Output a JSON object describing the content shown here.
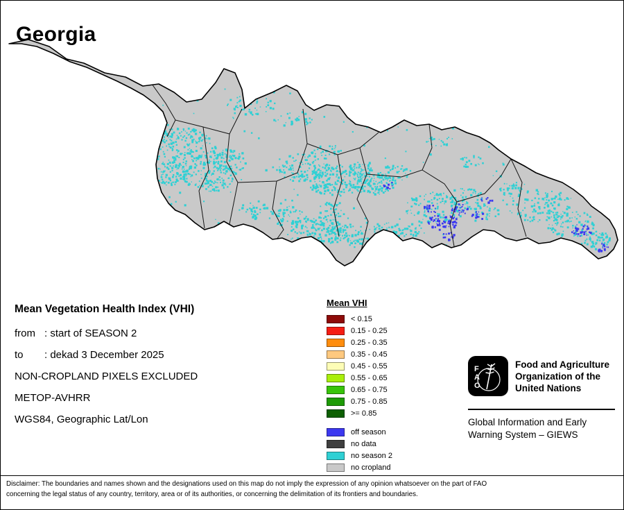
{
  "title": "Georgia",
  "info": {
    "heading": "Mean Vegetation Health Index (VHI)",
    "from_label": "from",
    "from_value": ": start of SEASON 2",
    "to_label": "to",
    "to_value": ": dekad 3 December 2025",
    "exclusion_note": "NON-CROPLAND PIXELS EXCLUDED",
    "sensor": "METOP-AVHRR",
    "projection": "WGS84, Geographic Lat/Lon"
  },
  "legend": {
    "title": "Mean VHI",
    "vhi_classes": [
      {
        "label": "< 0.15",
        "color": "#8e0b09"
      },
      {
        "label": "0.15 - 0.25",
        "color": "#f51d14"
      },
      {
        "label": "0.25 - 0.35",
        "color": "#ff8d0e"
      },
      {
        "label": "0.35 - 0.45",
        "color": "#fec97f"
      },
      {
        "label": "0.45 - 0.55",
        "color": "#fdfdb6"
      },
      {
        "label": "0.55 - 0.65",
        "color": "#a9ef0b"
      },
      {
        "label": "0.65 - 0.75",
        "color": "#38c40a"
      },
      {
        "label": "0.75 - 0.85",
        "color": "#1e9b06"
      },
      {
        "label": ">= 0.85",
        "color": "#0d5f02"
      }
    ],
    "status_classes": [
      {
        "label": "off season",
        "color": "#3c38f0"
      },
      {
        "label": "no data",
        "color": "#3f3f3f"
      },
      {
        "label": "no season 2",
        "color": "#2fd0d4"
      },
      {
        "label": "no cropland",
        "color": "#c9c9c9"
      }
    ]
  },
  "fao": {
    "logo_letters": [
      "F",
      "A",
      "O"
    ],
    "org_lines": [
      "Food and Agriculture",
      "Organization of the",
      "United Nations"
    ],
    "giews_lines": [
      "Global Information and Early",
      "Warning System – GIEWS"
    ]
  },
  "disclaimer": {
    "lines": [
      "Disclaimer: The boundaries and names shown and the designations used on this map do not imply the expression of any opinion whatsoever on the part of FAO",
      "concerning the legal status of any country, territory, area or of its authorities, or concerning the delimitation of its frontiers and boundaries."
    ]
  }
}
